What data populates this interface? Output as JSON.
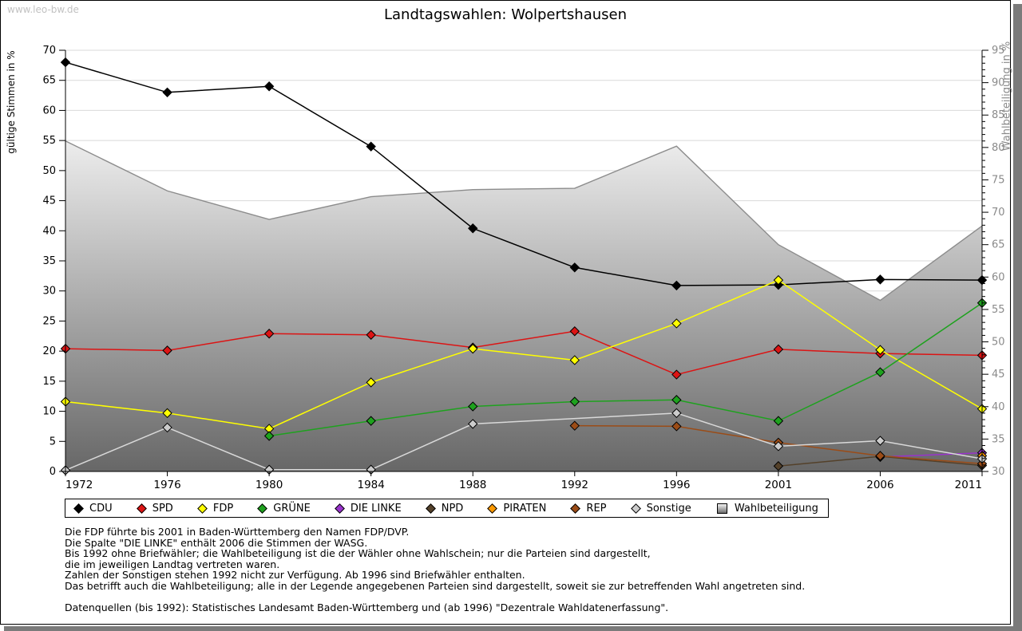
{
  "watermark": "www.leo-bw.de",
  "title": "Landtagswahlen: Wolpertshausen",
  "chart_data": {
    "type": "line",
    "x": [
      1972,
      1976,
      1980,
      1984,
      1988,
      1992,
      1996,
      2001,
      2006,
      2011
    ],
    "left_axis": {
      "label": "gültige Stimmen in %",
      "min": 0,
      "max": 70,
      "step": 5
    },
    "right_axis": {
      "label": "Wahlbeteiligung in %",
      "min": 30,
      "max": 95,
      "step": 5
    },
    "grid": true,
    "legend_position": "bottom",
    "series": [
      {
        "name": "Wahlbeteiligung",
        "type": "area",
        "axis": "right",
        "marker": "square",
        "color": "#8c8c8c",
        "values": [
          81.0,
          73.3,
          68.9,
          72.4,
          73.5,
          73.7,
          80.2,
          65.0,
          56.4,
          67.9
        ]
      },
      {
        "name": "CDU",
        "type": "line",
        "axis": "left",
        "marker": "diamond",
        "color": "#000000",
        "values": [
          68.0,
          63.0,
          64.0,
          54.0,
          40.4,
          33.9,
          30.9,
          31.0,
          31.9,
          31.8
        ]
      },
      {
        "name": "SPD",
        "type": "line",
        "axis": "left",
        "marker": "diamond",
        "color": "#dc1414",
        "values": [
          20.4,
          20.1,
          22.9,
          22.7,
          20.6,
          23.3,
          16.1,
          20.3,
          19.6,
          19.3
        ]
      },
      {
        "name": "FDP",
        "type": "line",
        "axis": "left",
        "marker": "diamond",
        "color": "#ffff00",
        "values": [
          11.6,
          9.7,
          7.1,
          14.8,
          20.4,
          18.5,
          24.6,
          31.8,
          20.2,
          10.4
        ]
      },
      {
        "name": "GRÜNE",
        "type": "line",
        "axis": "left",
        "marker": "diamond",
        "color": "#1ea21e",
        "values": [
          null,
          null,
          5.9,
          8.4,
          10.8,
          11.6,
          11.9,
          8.4,
          16.5,
          28.0
        ]
      },
      {
        "name": "DIE LINKE",
        "type": "line",
        "axis": "left",
        "marker": "diamond",
        "color": "#9933cc",
        "values": [
          null,
          null,
          null,
          null,
          null,
          null,
          null,
          null,
          2.4,
          3.1
        ]
      },
      {
        "name": "NPD",
        "type": "line",
        "axis": "left",
        "marker": "diamond",
        "color": "#54412a",
        "values": [
          null,
          null,
          null,
          null,
          null,
          null,
          null,
          0.9,
          2.5,
          1.0
        ]
      },
      {
        "name": "PIRATEN",
        "type": "line",
        "axis": "left",
        "marker": "diamond",
        "color": "#ff9900",
        "values": [
          null,
          null,
          null,
          null,
          null,
          null,
          null,
          null,
          null,
          2.6
        ]
      },
      {
        "name": "REP",
        "type": "line",
        "axis": "left",
        "marker": "diamond",
        "color": "#9b4c17",
        "values": [
          null,
          null,
          null,
          null,
          null,
          7.6,
          7.5,
          4.8,
          2.6,
          1.3
        ]
      },
      {
        "name": "Sonstige",
        "type": "line",
        "axis": "left",
        "marker": "diamond",
        "color": "#cccccc",
        "line_color": "#d9d9d9",
        "values": [
          0.2,
          7.3,
          0.3,
          0.3,
          7.9,
          null,
          9.7,
          4.2,
          5.1,
          2.1
        ]
      }
    ]
  },
  "legend_order": [
    "CDU",
    "SPD",
    "FDP",
    "GRÜNE",
    "DIE LINKE",
    "NPD",
    "PIRATEN",
    "REP",
    "Sonstige",
    "Wahlbeteiligung"
  ],
  "notes": [
    "Die FDP führte bis 2001 in Baden-Württemberg den Namen FDP/DVP.",
    "Die Spalte \"DIE LINKE\" enthält 2006 die Stimmen der WASG.",
    "Bis 1992 ohne Briefwähler; die Wahlbeteiligung ist die der Wähler ohne Wahlschein; nur die Parteien sind dargestellt,",
    "die im jeweiligen Landtag vertreten waren.",
    "Zahlen der Sonstigen stehen 1992 nicht zur Verfügung. Ab 1996 sind Briefwähler enthalten.",
    "Das betrifft auch die Wahlbeteiligung; alle in der Legende angegebenen Parteien sind dargestellt, soweit sie zur betreffenden Wahl angetreten sind.",
    "",
    "Datenquellen (bis 1992): Statistisches Landesamt Baden-Württemberg und (ab 1996) \"Dezentrale Wahldatenerfassung\"."
  ]
}
